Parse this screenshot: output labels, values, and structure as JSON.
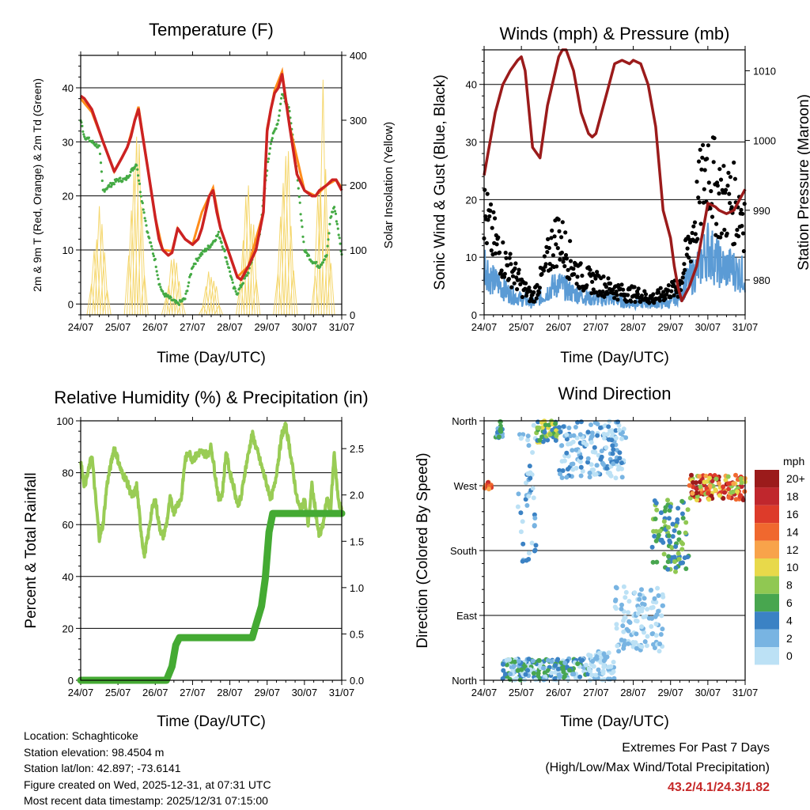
{
  "colors": {
    "temp_2m": "#cc2222",
    "temp_9m": "#ff8c1a",
    "dewpoint": "#44aa44",
    "insolation": "#f5d76e",
    "wind": "#5b9bd5",
    "gust": "#000000",
    "pressure": "#9b1b1b",
    "rh": "#99cc55",
    "precip": "#44aa33",
    "extremes": "#c62828"
  },
  "chart_data": [
    {
      "type": "line",
      "title": "Temperature (F)",
      "xlabel": "Time (Day/UTC)",
      "ylabel": "2m & 9m T (Red, Orange) & 2m Td (Green)",
      "y2label": "Solar Insolation (Yellow)",
      "x_ticks": [
        "24/07",
        "25/07",
        "26/07",
        "27/07",
        "28/07",
        "29/07",
        "30/07",
        "31/07"
      ],
      "ylim": [
        -2,
        46
      ],
      "y_ticks": [
        0,
        10,
        20,
        30,
        40
      ],
      "y2lim": [
        0,
        400
      ],
      "y2_ticks": [
        0,
        100,
        200,
        300,
        400
      ],
      "series": [
        {
          "name": "2m T",
          "x": [
            0,
            0.1,
            0.3,
            0.6,
            0.9,
            1.1,
            1.25,
            1.35,
            1.45,
            1.55,
            1.8,
            2.0,
            2.1,
            2.2,
            2.35,
            2.45,
            2.6,
            2.8,
            3.0,
            3.15,
            3.25,
            3.35,
            3.45,
            3.55,
            3.65,
            3.75,
            3.85,
            4.0,
            4.2,
            4.3,
            4.5,
            4.7,
            4.9,
            5.0,
            5.1,
            5.2,
            5.3,
            5.4,
            5.6,
            5.8,
            6.0,
            6.2,
            6.3,
            6.4,
            6.6,
            6.75,
            6.85,
            7.0
          ],
          "values": [
            38.5,
            38,
            36,
            30,
            24.5,
            27,
            29,
            31,
            34,
            36,
            25,
            16,
            12,
            10,
            9,
            9.5,
            14,
            12,
            11,
            12,
            14,
            17,
            20,
            21,
            17,
            14,
            12,
            9,
            5,
            4.5,
            7,
            10,
            17,
            32,
            36,
            39,
            40,
            42.5,
            33,
            24,
            21,
            20,
            20,
            21,
            22,
            23,
            23,
            21
          ]
        },
        {
          "name": "9m T",
          "x": [
            0,
            0.3,
            0.6,
            0.9,
            1.25,
            1.45,
            1.55,
            1.8,
            2.0,
            2.2,
            2.45,
            2.6,
            2.8,
            3.0,
            3.25,
            3.45,
            3.55,
            3.75,
            4.0,
            4.2,
            4.5,
            4.9,
            5.0,
            5.2,
            5.4,
            5.6,
            6.0,
            6.3,
            6.6,
            6.85,
            7.0
          ],
          "values": [
            38,
            35.5,
            30,
            24.5,
            29,
            34,
            36.5,
            25,
            16,
            10,
            9.8,
            14,
            12,
            11,
            17,
            20,
            21.5,
            14,
            9,
            5,
            7,
            17,
            32.5,
            39.5,
            43,
            33,
            21,
            20,
            22,
            23,
            21.5
          ]
        },
        {
          "name": "2m Td",
          "x": [
            0,
            0.1,
            0.3,
            0.5,
            0.6,
            0.8,
            1.0,
            1.2,
            1.4,
            1.5,
            1.6,
            1.8,
            2.0,
            2.1,
            2.2,
            2.4,
            2.6,
            2.8,
            3.0,
            3.2,
            3.5,
            3.7,
            3.8,
            4.0,
            4.1,
            4.2,
            4.5,
            4.8,
            5.0,
            5.1,
            5.3,
            5.4,
            5.6,
            5.8,
            6.0,
            6.2,
            6.4,
            6.6,
            6.7,
            6.8,
            6.9,
            7.0
          ],
          "values": [
            34,
            31,
            30,
            29,
            21,
            22,
            23,
            23,
            25,
            26,
            21,
            13,
            8,
            4,
            2,
            1,
            0,
            1,
            7,
            9,
            11,
            13,
            11,
            6,
            3,
            2,
            6,
            13,
            25,
            30,
            34,
            39,
            36,
            24,
            10,
            8,
            7,
            9,
            16,
            18,
            14,
            9
          ]
        },
        {
          "name": "Solar Insolation",
          "axis": "y2",
          "peaks": [
            [
              0.5,
              240
            ],
            [
              1.5,
              385
            ],
            [
              2.5,
              130
            ],
            [
              3.5,
              90
            ],
            [
              4.5,
              280
            ],
            [
              5.5,
              370
            ],
            [
              6.5,
              380
            ]
          ]
        }
      ]
    },
    {
      "type": "scatter",
      "title": "Winds (mph) & Pressure (mb)",
      "xlabel": "Time (Day/UTC)",
      "ylabel": "Sonic Wind & Gust (Blue, Black)",
      "y2label": "Station Pressure (Maroon)",
      "x_ticks": [
        "24/07",
        "25/07",
        "26/07",
        "27/07",
        "28/07",
        "29/07",
        "30/07",
        "31/07"
      ],
      "ylim": [
        0,
        46
      ],
      "y_ticks": [
        0,
        10,
        20,
        30,
        40
      ],
      "y2lim": [
        975,
        1013
      ],
      "y2_ticks": [
        980,
        990,
        1000,
        1010
      ],
      "series": [
        {
          "name": "Pressure",
          "axis": "y2",
          "x": [
            0,
            0.1,
            0.3,
            0.5,
            0.7,
            0.9,
            1.0,
            1.1,
            1.3,
            1.5,
            1.7,
            2.0,
            2.1,
            2.2,
            2.4,
            2.6,
            2.8,
            2.9,
            3.0,
            3.1,
            3.3,
            3.5,
            3.7,
            3.9,
            4.0,
            4.2,
            4.4,
            4.6,
            4.7,
            4.8,
            5.0,
            5.1,
            5.2,
            5.3,
            5.5,
            5.7,
            5.8,
            6.0,
            6.2,
            6.3,
            6.5,
            6.7,
            6.8,
            6.9,
            7.0
          ],
          "values": [
            995,
            998,
            1004,
            1008,
            1010,
            1011.5,
            1012,
            1010,
            999,
            997.5,
            1005,
            1012,
            1013,
            1013,
            1010,
            1004,
            1001,
            1000.5,
            1001,
            1003,
            1007,
            1011,
            1011.5,
            1011,
            1011.5,
            1011,
            1008,
            1002,
            996,
            990,
            986,
            982,
            979,
            977,
            979,
            982,
            985,
            991,
            990.5,
            990,
            989.5,
            990,
            991,
            992,
            993
          ]
        },
        {
          "name": "Gust",
          "envelope": {
            "x": [
              0,
              0.2,
              0.4,
              0.6,
              0.8,
              1.0,
              1.3,
              1.6,
              1.8,
              2.0,
              2.3,
              2.6,
              2.9,
              3.2,
              3.5,
              3.8,
              4.1,
              4.4,
              4.6,
              4.8,
              5.0,
              5.2,
              5.3,
              5.4,
              5.6,
              5.8,
              6.0,
              6.2,
              6.4,
              6.6,
              6.8,
              7.0
            ],
            "values": [
              24,
              19,
              15,
              12,
              10,
              7,
              4,
              10,
              16,
              19,
              13,
              9,
              8,
              7,
              6,
              5,
              5,
              4,
              4,
              5,
              6,
              6,
              9,
              13,
              20,
              29,
              37,
              30,
              27,
              27,
              26,
              24
            ]
          }
        },
        {
          "name": "Wind",
          "envelope": {
            "x": [
              0,
              0.2,
              0.4,
              0.6,
              0.8,
              1.0,
              1.3,
              1.6,
              1.8,
              2.0,
              2.3,
              2.6,
              2.9,
              3.2,
              3.5,
              3.8,
              4.1,
              4.4,
              4.6,
              4.8,
              5.0,
              5.2,
              5.3,
              5.4,
              5.6,
              5.8,
              6.0,
              6.2,
              6.4,
              6.6,
              6.8,
              7.0
            ],
            "values": [
              14,
              9,
              8,
              6,
              5,
              4,
              3,
              5,
              7,
              8,
              6,
              5,
              4,
              4,
              4,
              3,
              3,
              3,
              3,
              3,
              3,
              5,
              6,
              8,
              10,
              13,
              17,
              14,
              12,
              12,
              11,
              10
            ]
          }
        }
      ]
    },
    {
      "type": "line",
      "title": "Relative Humidity (%) & Precipitation (in)",
      "xlabel": "Time (Day/UTC)",
      "ylabel": "Percent & Total Rainfall",
      "x_ticks": [
        "24/07",
        "25/07",
        "26/07",
        "27/07",
        "28/07",
        "29/07",
        "30/07",
        "31/07"
      ],
      "ylim": [
        0,
        100
      ],
      "y_ticks": [
        0,
        20,
        40,
        60,
        80,
        100
      ],
      "y2lim": [
        0,
        2.8
      ],
      "y2_ticks": [
        "0.0",
        "0.5",
        "1.0",
        "1.5",
        "2.0",
        "2.5"
      ],
      "series": [
        {
          "name": "Relative Humidity",
          "x": [
            0,
            0.1,
            0.2,
            0.3,
            0.4,
            0.5,
            0.6,
            0.7,
            0.9,
            1.0,
            1.1,
            1.2,
            1.4,
            1.5,
            1.6,
            1.7,
            1.8,
            1.9,
            2.0,
            2.1,
            2.2,
            2.3,
            2.4,
            2.5,
            2.6,
            2.7,
            2.8,
            2.9,
            3.0,
            3.2,
            3.4,
            3.5,
            3.6,
            3.7,
            3.8,
            3.9,
            4.0,
            4.1,
            4.2,
            4.3,
            4.4,
            4.6,
            4.7,
            4.8,
            4.9,
            5.0,
            5.1,
            5.2,
            5.3,
            5.4,
            5.5,
            5.6,
            5.7,
            5.8,
            5.9,
            6.0,
            6.1,
            6.2,
            6.3,
            6.4,
            6.5,
            6.6,
            6.7,
            6.8,
            6.9,
            7.0
          ],
          "values": [
            84,
            75,
            80,
            87,
            70,
            55,
            60,
            75,
            90,
            85,
            80,
            78,
            70,
            75,
            60,
            48,
            55,
            65,
            70,
            60,
            55,
            60,
            70,
            65,
            68,
            70,
            85,
            88,
            85,
            88,
            87,
            90,
            80,
            70,
            72,
            88,
            80,
            75,
            68,
            70,
            80,
            95,
            90,
            85,
            80,
            75,
            70,
            75,
            85,
            95,
            98,
            90,
            80,
            70,
            65,
            70,
            60,
            75,
            65,
            55,
            60,
            70,
            65,
            88,
            70,
            65
          ]
        },
        {
          "name": "Total Precipitation",
          "axis": "y2",
          "x": [
            0,
            2.3,
            2.45,
            2.55,
            2.65,
            4.6,
            4.7,
            4.85,
            4.95,
            5.05,
            5.15,
            7.0
          ],
          "values": [
            0,
            0,
            0.15,
            0.38,
            0.46,
            0.46,
            0.6,
            0.8,
            1.1,
            1.6,
            1.8,
            1.8
          ]
        }
      ]
    },
    {
      "type": "scatter",
      "title": "Wind Direction",
      "xlabel": "Time (Day/UTC)",
      "ylabel": "Direction (Colored By Speed)",
      "x_ticks": [
        "24/07",
        "25/07",
        "26/07",
        "27/07",
        "28/07",
        "29/07",
        "30/07",
        "31/07"
      ],
      "ylim": [
        0,
        360
      ],
      "y_ticks": [
        "North",
        "East",
        "South",
        "West",
        "North"
      ],
      "legend": {
        "title": "mph",
        "labels": [
          "20+",
          "18",
          "16",
          "14",
          "12",
          "10",
          "8",
          "6",
          "4",
          "2",
          "0"
        ],
        "colors": [
          "#9b1b1b",
          "#c0272d",
          "#dd3b2a",
          "#f0682e",
          "#f8a34a",
          "#e8d94a",
          "#90c852",
          "#48a64f",
          "#3b82c4",
          "#78b4e2",
          "#bce1f5"
        ]
      },
      "clusters": [
        {
          "x": [
            0,
            0.2
          ],
          "dir": [
            265,
            275
          ],
          "speed": [
            12,
            20
          ]
        },
        {
          "x": [
            0.3,
            0.5
          ],
          "dir": [
            335,
            360
          ],
          "speed": [
            2,
            8
          ]
        },
        {
          "x": [
            0.9,
            1.4
          ],
          "dir": [
            150,
            360
          ],
          "speed": [
            0,
            6
          ]
        },
        {
          "x": [
            1.4,
            2.0
          ],
          "dir": [
            330,
            360
          ],
          "speed": [
            4,
            12
          ]
        },
        {
          "x": [
            2.0,
            3.8
          ],
          "dir": [
            280,
            360
          ],
          "speed": [
            0,
            6
          ]
        },
        {
          "x": [
            0.5,
            2.8
          ],
          "dir": [
            0,
            30
          ],
          "speed": [
            0,
            8
          ]
        },
        {
          "x": [
            2.8,
            3.5
          ],
          "dir": [
            0,
            40
          ],
          "speed": [
            0,
            4
          ]
        },
        {
          "x": [
            3.5,
            4.8
          ],
          "dir": [
            40,
            130
          ],
          "speed": [
            0,
            4
          ]
        },
        {
          "x": [
            4.5,
            5.5
          ],
          "dir": [
            150,
            250
          ],
          "speed": [
            4,
            10
          ]
        },
        {
          "x": [
            5.5,
            7.0
          ],
          "dir": [
            250,
            285
          ],
          "speed": [
            8,
            22
          ]
        }
      ]
    }
  ],
  "footer": {
    "location": "Location: Schaghticoke",
    "elevation": "Station elevation: 98.4504 m",
    "latlon": "Station lat/lon: 42.897; -73.6141",
    "created": "Figure created on Wed, 2025-12-31, at 07:31 UTC",
    "recent": "Most recent data timestamp: 2025/12/31 07:15:00"
  },
  "extremes": {
    "title": "Extremes For Past 7 Days",
    "subtitle": "(High/Low/Max Wind/Total Precipitation)",
    "values": "43.2/4.1/24.3/1.82"
  }
}
